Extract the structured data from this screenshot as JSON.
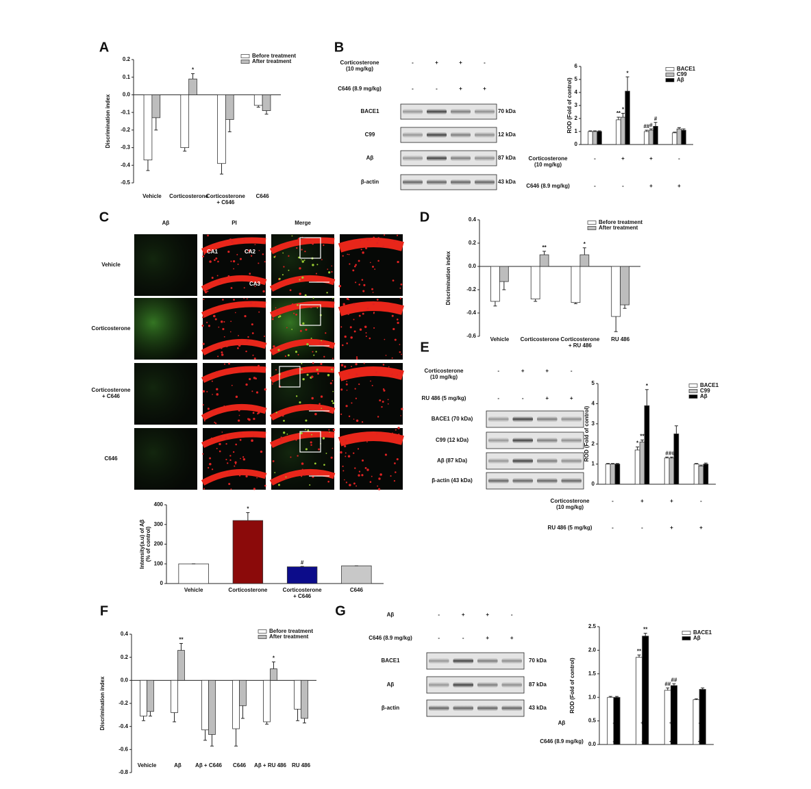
{
  "chart_data": [
    {
      "panel": "A",
      "type": "bar",
      "ylabel": "Discrimination index",
      "categories": [
        "Vehicle",
        "Corticosterone",
        "Corticosterone\n+ C646",
        "C646"
      ],
      "series": [
        {
          "name": "Before treatment",
          "color": "#ffffff",
          "values": [
            -0.37,
            -0.3,
            -0.39,
            -0.06
          ],
          "errors": [
            0.06,
            0.02,
            0.06,
            0.01
          ]
        },
        {
          "name": "After treatment",
          "color": "#bdbdbd",
          "values": [
            -0.13,
            0.09,
            -0.14,
            -0.09
          ],
          "errors": [
            0.07,
            0.03,
            0.07,
            0.02
          ],
          "significance": [
            null,
            "*",
            null,
            null
          ]
        }
      ],
      "ylim": [
        -0.5,
        0.2
      ],
      "yticks": [
        -0.5,
        -0.4,
        -0.3,
        -0.2,
        -0.1,
        {
          "value": 0,
          "label": "0.0"
        },
        0.1,
        0.2
      ]
    },
    {
      "type": "bar",
      "ylabel": "ROD (Fold of control)",
      "conditions": [
        {
          "name": "Corticosterone\n(10 mg/kg)",
          "signs": [
            "-",
            "+",
            "+",
            "-"
          ]
        },
        {
          "name": "C646 (8.9 mg/kg)",
          "signs": [
            "-",
            "-",
            "+",
            "+"
          ]
        }
      ],
      "series": [
        {
          "name": "BACE1",
          "color": "#ffffff",
          "values": [
            1,
            1.9,
            1.0,
            0.9
          ],
          "errors": [
            0.05,
            0.2,
            0.1,
            0.05
          ],
          "significance": [
            null,
            "**",
            "##",
            null
          ]
        },
        {
          "name": "C99",
          "color": "#bdbdbd",
          "values": [
            1,
            2.1,
            1.1,
            1.2
          ],
          "errors": [
            0.05,
            0.3,
            0.1,
            0.1
          ],
          "significance": [
            null,
            "*",
            "#",
            null
          ]
        },
        {
          "name": "Aβ",
          "color": "#000000",
          "values": [
            1,
            4.1,
            1.4,
            1.1
          ],
          "errors": [
            0.05,
            1.1,
            0.3,
            0.1
          ],
          "significance": [
            null,
            "*",
            "#",
            null
          ]
        }
      ],
      "ylim": [
        0,
        6
      ],
      "yticks": [
        0,
        1,
        2,
        3,
        4,
        5,
        6
      ]
    },
    {
      "panel": "D",
      "type": "bar",
      "ylabel": "Discrimination index",
      "categories": [
        "Vehicle",
        "Corticosterone",
        "Corticosterone\n+ RU 486",
        "RU 486"
      ],
      "series": [
        {
          "name": "Before treatment",
          "color": "#ffffff",
          "values": [
            -0.3,
            -0.28,
            -0.31,
            -0.43
          ],
          "errors": [
            0.04,
            0.02,
            0.01,
            0.13
          ]
        },
        {
          "name": "After treatment",
          "color": "#bdbdbd",
          "values": [
            -0.13,
            0.1,
            0.1,
            -0.33
          ],
          "errors": [
            0.07,
            0.03,
            0.06,
            0.03
          ],
          "significance": [
            null,
            "**",
            "*",
            null
          ]
        }
      ],
      "ylim": [
        -0.6,
        0.4
      ],
      "yticks": [
        -0.6,
        -0.4,
        -0.2,
        {
          "value": 0,
          "label": "0.0"
        },
        0.2,
        0.4
      ]
    },
    {
      "type": "bar",
      "ylabel": "ROD (Fold of control)",
      "conditions": [
        {
          "name": "Corticosterone\n(10 mg/kg)",
          "signs": [
            "-",
            "+",
            "+",
            "-"
          ]
        },
        {
          "name": "RU 486 (5 mg/kg)",
          "signs": [
            "-",
            "-",
            "+",
            "+"
          ]
        }
      ],
      "series": [
        {
          "name": "BACE1",
          "color": "#ffffff",
          "values": [
            1,
            1.7,
            1.3,
            1.0
          ],
          "errors": [
            0.03,
            0.15,
            0.05,
            0.03
          ],
          "significance": [
            null,
            "*",
            "#",
            null
          ]
        },
        {
          "name": "C99",
          "color": "#bdbdbd",
          "values": [
            1,
            2.1,
            1.3,
            0.9
          ],
          "errors": [
            0.03,
            0.1,
            0.05,
            0.05
          ],
          "significance": [
            null,
            "**",
            "##",
            null
          ]
        },
        {
          "name": "Aβ",
          "color": "#000000",
          "values": [
            1,
            3.9,
            2.5,
            1.0
          ],
          "errors": [
            0.03,
            0.8,
            0.4,
            0.05
          ],
          "significance": [
            null,
            "*",
            null,
            null
          ]
        }
      ],
      "ylim": [
        0,
        5
      ],
      "yticks": [
        0,
        1,
        2,
        3,
        4,
        5
      ]
    },
    {
      "type": "bar",
      "ylabel": "Intensity(a.u) of Aβ\n(% of control)",
      "categories": [
        "Vehicle",
        "Corticosterone",
        "Corticosterone\n+ C646",
        "C646"
      ],
      "values": [
        100,
        320,
        85,
        90
      ],
      "errors": [
        0,
        40,
        2,
        0
      ],
      "significance": [
        null,
        "*",
        "#",
        null
      ],
      "colors": [
        "#ffffff",
        "#8b0a0a",
        "#0c0c8a",
        "#c8c8c8"
      ],
      "ylim": [
        0,
        400
      ],
      "yticks": [
        0,
        100,
        200,
        300,
        400
      ]
    },
    {
      "panel": "F",
      "type": "bar",
      "ylabel": "Discrimination index",
      "categories": [
        "Vehicle",
        "Aβ",
        "Aβ + C646",
        "C646",
        "Aβ + RU 486",
        "RU 486"
      ],
      "series": [
        {
          "name": "Before treatment",
          "color": "#ffffff",
          "values": [
            -0.31,
            -0.28,
            -0.43,
            -0.42,
            -0.36,
            -0.25
          ],
          "errors": [
            0.04,
            0.08,
            0.09,
            0.15,
            0.02,
            0.1
          ]
        },
        {
          "name": "After treatment",
          "color": "#bdbdbd",
          "values": [
            -0.27,
            0.26,
            -0.47,
            -0.22,
            0.1,
            -0.33
          ],
          "errors": [
            0.04,
            0.06,
            0.1,
            0.11,
            0.06,
            0.04
          ],
          "significance": [
            null,
            "**",
            null,
            null,
            "*",
            null
          ]
        }
      ],
      "ylim": [
        -0.8,
        0.4
      ],
      "yticks": [
        -0.8,
        -0.6,
        -0.4,
        -0.2,
        {
          "value": 0,
          "label": "0.0"
        },
        0.2,
        0.4
      ]
    },
    {
      "type": "bar",
      "ylabel": "ROD (Fold of control)",
      "conditions": [
        {
          "name": "Aβ",
          "signs": [
            "-",
            "+",
            "+",
            "-"
          ]
        },
        {
          "name": "C646 (8.9 mg/kg)",
          "signs": [
            "-",
            "-",
            "+",
            "+"
          ]
        }
      ],
      "series": [
        {
          "name": "BACE1",
          "color": "#ffffff",
          "values": [
            1,
            1.85,
            1.15,
            0.95
          ],
          "errors": [
            0.02,
            0.05,
            0.05,
            0.02
          ],
          "significance": [
            null,
            "**",
            "##",
            null
          ]
        },
        {
          "name": "Aβ",
          "color": "#000000",
          "values": [
            1,
            2.3,
            1.25,
            1.17
          ],
          "errors": [
            0.02,
            0.06,
            0.04,
            0.03
          ],
          "significance": [
            null,
            "**",
            "##",
            null
          ]
        }
      ],
      "ylim": [
        0,
        2.5
      ],
      "yticks": [
        {
          "value": 0,
          "label": "0.0"
        },
        0.5,
        {
          "value": 1,
          "label": "1.0"
        },
        1.5,
        {
          "value": 2,
          "label": "2.0"
        },
        2.5
      ]
    }
  ],
  "blots": [
    {
      "panel": "B",
      "conditions": [
        {
          "name": "Corticosterone\n(10 mg/kg)",
          "signs": [
            "-",
            "+",
            "+",
            "-"
          ]
        },
        {
          "name": "C646 (8.9 mg/kg)",
          "signs": [
            "-",
            "-",
            "+",
            "+"
          ]
        }
      ],
      "rows": [
        {
          "label": "BACE1",
          "size": "70 kDa"
        },
        {
          "label": "C99",
          "size": "12 kDa"
        },
        {
          "label": "Aβ",
          "size": "87 kDa"
        },
        {
          "label": "β-actin",
          "size": "43 kDa"
        }
      ]
    },
    {
      "panel": "E",
      "conditions": [
        {
          "name": "Corticosterone\n(10 mg/kg)",
          "signs": [
            "-",
            "+",
            "+",
            "-"
          ]
        },
        {
          "name": "RU 486 (5 mg/kg)",
          "signs": [
            "-",
            "-",
            "+",
            "+"
          ]
        }
      ],
      "rows": [
        {
          "label": "BACE1 (70 kDa)"
        },
        {
          "label": "C99 (12 kDa)"
        },
        {
          "label": "Aβ (87 kDa)"
        },
        {
          "label": "β-actin (43 kDa)"
        }
      ]
    },
    {
      "panel": "G",
      "conditions": [
        {
          "name": "Aβ",
          "signs": [
            "-",
            "+",
            "+",
            "-"
          ]
        },
        {
          "name": "C646 (8.9 mg/kg)",
          "signs": [
            "-",
            "-",
            "+",
            "+"
          ]
        }
      ],
      "rows": [
        {
          "label": "BACE1",
          "size": "70 kDa"
        },
        {
          "label": "Aβ",
          "size": "87 kDa"
        },
        {
          "label": "β-actin",
          "size": "43 kDa"
        }
      ]
    }
  ],
  "microscopy": {
    "panel": "C",
    "columns": [
      "Aβ",
      "PI",
      "Merge"
    ],
    "rows": [
      "Vehicle",
      "Corticosterone",
      "Corticosterone\n+ C646",
      "C646"
    ],
    "regions": [
      "CA1",
      "CA2",
      "CA3"
    ]
  }
}
